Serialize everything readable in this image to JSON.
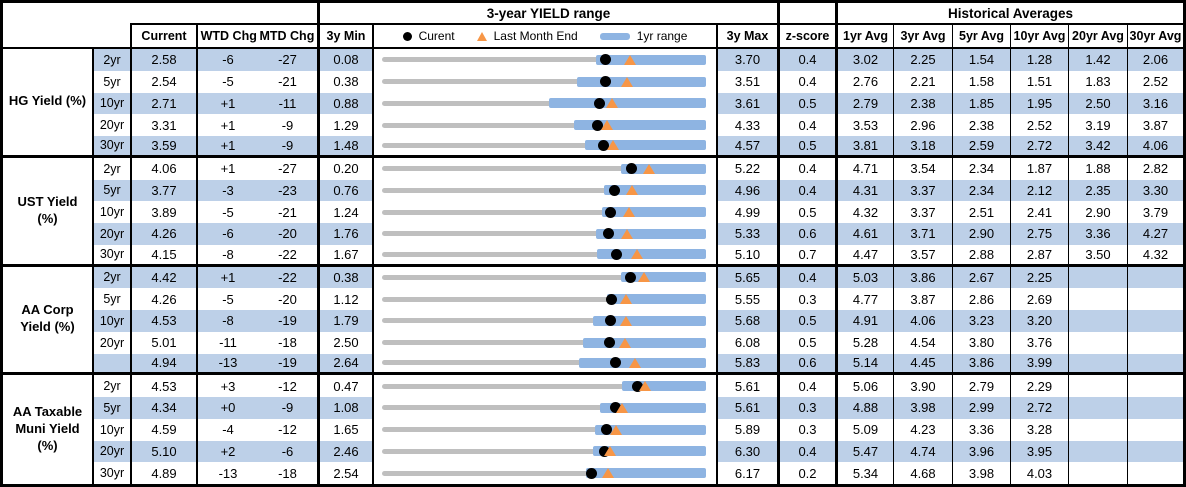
{
  "table": {
    "yield_range_title": "3-year YIELD range",
    "historical_title": "Historical Averages",
    "legend": {
      "current": "Curent",
      "last_month": "Last Month End",
      "range_1yr": "1yr range"
    },
    "headers": {
      "current": "Current",
      "wtd": "WTD Chg",
      "mtd": "MTD Chg",
      "min3y": "3y Min",
      "max3y": "3y Max",
      "zscore": "z-score",
      "avgs": [
        "1yr Avg",
        "3yr Avg",
        "5yr Avg",
        "10yr Avg",
        "20yr Avg",
        "30yr Avg"
      ]
    },
    "colors": {
      "row_band": "#BDD0E8",
      "range_bar": "#8EB4E2",
      "last_month_triangle": "#F79646",
      "track_line": "#BFBFBF",
      "current_dot": "#000000"
    }
  },
  "chart_data": {
    "type": "table",
    "title": "3-year YIELD range",
    "legend_entries": [
      "Curent",
      "Last Month End",
      "1yr range"
    ],
    "value_units": "percent yield; WTD/MTD changes in bp",
    "groups": [
      {
        "label": "HG Yield (%)",
        "rows": [
          {
            "tenor": "2yr",
            "current": "2.58",
            "wtd": "-6",
            "mtd": "-27",
            "min3y": "0.08",
            "max3y": "3.70",
            "yr1_range": [
              2.47,
              3.7
            ],
            "zscore": "0.4",
            "avgs": [
              "3.02",
              "2.25",
              "1.54",
              "1.28",
              "1.42",
              "2.06"
            ]
          },
          {
            "tenor": "5yr",
            "current": "2.54",
            "wtd": "-5",
            "mtd": "-21",
            "min3y": "0.38",
            "max3y": "3.51",
            "yr1_range": [
              2.26,
              3.51
            ],
            "zscore": "0.4",
            "avgs": [
              "2.76",
              "2.21",
              "1.58",
              "1.51",
              "1.83",
              "2.52"
            ]
          },
          {
            "tenor": "10yr",
            "current": "2.71",
            "wtd": "+1",
            "mtd": "-11",
            "min3y": "0.88",
            "max3y": "3.61",
            "yr1_range": [
              2.29,
              3.61
            ],
            "zscore": "0.5",
            "avgs": [
              "2.79",
              "2.38",
              "1.85",
              "1.95",
              "2.50",
              "3.16"
            ]
          },
          {
            "tenor": "20yr",
            "current": "3.31",
            "wtd": "+1",
            "mtd": "-9",
            "min3y": "1.29",
            "max3y": "4.33",
            "yr1_range": [
              3.09,
              4.33
            ],
            "zscore": "0.4",
            "avgs": [
              "3.53",
              "2.96",
              "2.38",
              "2.52",
              "3.19",
              "3.87"
            ]
          },
          {
            "tenor": "30yr",
            "current": "3.59",
            "wtd": "+1",
            "mtd": "-9",
            "min3y": "1.48",
            "max3y": "4.57",
            "yr1_range": [
              3.42,
              4.57
            ],
            "zscore": "0.5",
            "avgs": [
              "3.81",
              "3.18",
              "2.59",
              "2.72",
              "3.42",
              "4.06"
            ]
          }
        ]
      },
      {
        "label": "UST Yield (%)",
        "rows": [
          {
            "tenor": "2yr",
            "current": "4.06",
            "wtd": "+1",
            "mtd": "-27",
            "min3y": "0.20",
            "max3y": "5.22",
            "yr1_range": [
              3.91,
              5.22
            ],
            "zscore": "0.4",
            "avgs": [
              "4.71",
              "3.54",
              "2.34",
              "1.87",
              "1.88",
              "2.82"
            ]
          },
          {
            "tenor": "5yr",
            "current": "3.77",
            "wtd": "-3",
            "mtd": "-23",
            "min3y": "0.76",
            "max3y": "4.96",
            "yr1_range": [
              3.64,
              4.96
            ],
            "zscore": "0.4",
            "avgs": [
              "4.31",
              "3.37",
              "2.34",
              "2.12",
              "2.35",
              "3.30"
            ]
          },
          {
            "tenor": "10yr",
            "current": "3.89",
            "wtd": "-5",
            "mtd": "-21",
            "min3y": "1.24",
            "max3y": "4.99",
            "yr1_range": [
              3.79,
              4.99
            ],
            "zscore": "0.5",
            "avgs": [
              "4.32",
              "3.37",
              "2.51",
              "2.41",
              "2.90",
              "3.79"
            ]
          },
          {
            "tenor": "20yr",
            "current": "4.26",
            "wtd": "-6",
            "mtd": "-20",
            "min3y": "1.76",
            "max3y": "5.33",
            "yr1_range": [
              4.12,
              5.33
            ],
            "zscore": "0.6",
            "avgs": [
              "4.61",
              "3.71",
              "2.90",
              "2.75",
              "3.36",
              "4.27"
            ]
          },
          {
            "tenor": "30yr",
            "current": "4.15",
            "wtd": "-8",
            "mtd": "-22",
            "min3y": "1.67",
            "max3y": "5.10",
            "yr1_range": [
              3.95,
              5.1
            ],
            "zscore": "0.7",
            "avgs": [
              "4.47",
              "3.57",
              "2.88",
              "2.87",
              "3.50",
              "4.32"
            ]
          }
        ]
      },
      {
        "label": "AA Corp Yield (%)",
        "rows": [
          {
            "tenor": "2yr",
            "current": "4.42",
            "wtd": "+1",
            "mtd": "-22",
            "min3y": "0.38",
            "max3y": "5.65",
            "yr1_range": [
              4.27,
              5.65
            ],
            "zscore": "0.4",
            "avgs": [
              "5.03",
              "3.86",
              "2.67",
              "2.25",
              "",
              ""
            ]
          },
          {
            "tenor": "5yr",
            "current": "4.26",
            "wtd": "-5",
            "mtd": "-20",
            "min3y": "1.12",
            "max3y": "5.55",
            "yr1_range": [
              4.19,
              5.55
            ],
            "zscore": "0.3",
            "avgs": [
              "4.77",
              "3.87",
              "2.86",
              "2.69",
              "",
              ""
            ]
          },
          {
            "tenor": "10yr",
            "current": "4.53",
            "wtd": "-8",
            "mtd": "-19",
            "min3y": "1.79",
            "max3y": "5.68",
            "yr1_range": [
              4.32,
              5.68
            ],
            "zscore": "0.5",
            "avgs": [
              "4.91",
              "4.06",
              "3.23",
              "3.20",
              "",
              ""
            ]
          },
          {
            "tenor": "20yr",
            "current": "5.01",
            "wtd": "-11",
            "mtd": "-18",
            "min3y": "2.50",
            "max3y": "6.08",
            "yr1_range": [
              4.72,
              6.08
            ],
            "zscore": "0.5",
            "avgs": [
              "5.28",
              "4.54",
              "3.80",
              "3.76",
              "",
              ""
            ]
          },
          {
            "tenor": "",
            "current": "4.94",
            "wtd": "-13",
            "mtd": "-19",
            "min3y": "2.64",
            "max3y": "5.83",
            "yr1_range": [
              4.58,
              5.83
            ],
            "zscore": "0.6",
            "avgs": [
              "5.14",
              "4.45",
              "3.86",
              "3.99",
              "",
              ""
            ]
          }
        ]
      },
      {
        "label": "AA Taxable Muni Yield (%)",
        "rows": [
          {
            "tenor": "2yr",
            "current": "4.53",
            "wtd": "+3",
            "mtd": "-12",
            "min3y": "0.47",
            "max3y": "5.61",
            "yr1_range": [
              4.28,
              5.61
            ],
            "zscore": "0.4",
            "avgs": [
              "5.06",
              "3.90",
              "2.79",
              "2.29",
              "",
              ""
            ]
          },
          {
            "tenor": "5yr",
            "current": "4.34",
            "wtd": "+0",
            "mtd": "-9",
            "min3y": "1.08",
            "max3y": "5.61",
            "yr1_range": [
              4.13,
              5.61
            ],
            "zscore": "0.3",
            "avgs": [
              "4.88",
              "3.98",
              "2.99",
              "2.72",
              "",
              ""
            ]
          },
          {
            "tenor": "10yr",
            "current": "4.59",
            "wtd": "-4",
            "mtd": "-12",
            "min3y": "1.65",
            "max3y": "5.89",
            "yr1_range": [
              4.44,
              5.89
            ],
            "zscore": "0.3",
            "avgs": [
              "5.09",
              "4.23",
              "3.36",
              "3.28",
              "",
              ""
            ]
          },
          {
            "tenor": "20yr",
            "current": "5.10",
            "wtd": "+2",
            "mtd": "-6",
            "min3y": "2.46",
            "max3y": "6.30",
            "yr1_range": [
              4.96,
              6.3
            ],
            "zscore": "0.4",
            "avgs": [
              "5.47",
              "4.74",
              "3.96",
              "3.95",
              "",
              ""
            ]
          },
          {
            "tenor": "30yr",
            "current": "4.89",
            "wtd": "-13",
            "mtd": "-18",
            "min3y": "2.54",
            "max3y": "6.17",
            "yr1_range": [
              4.82,
              6.17
            ],
            "zscore": "0.2",
            "avgs": [
              "5.34",
              "4.68",
              "3.98",
              "4.03",
              "",
              ""
            ]
          }
        ]
      }
    ]
  }
}
